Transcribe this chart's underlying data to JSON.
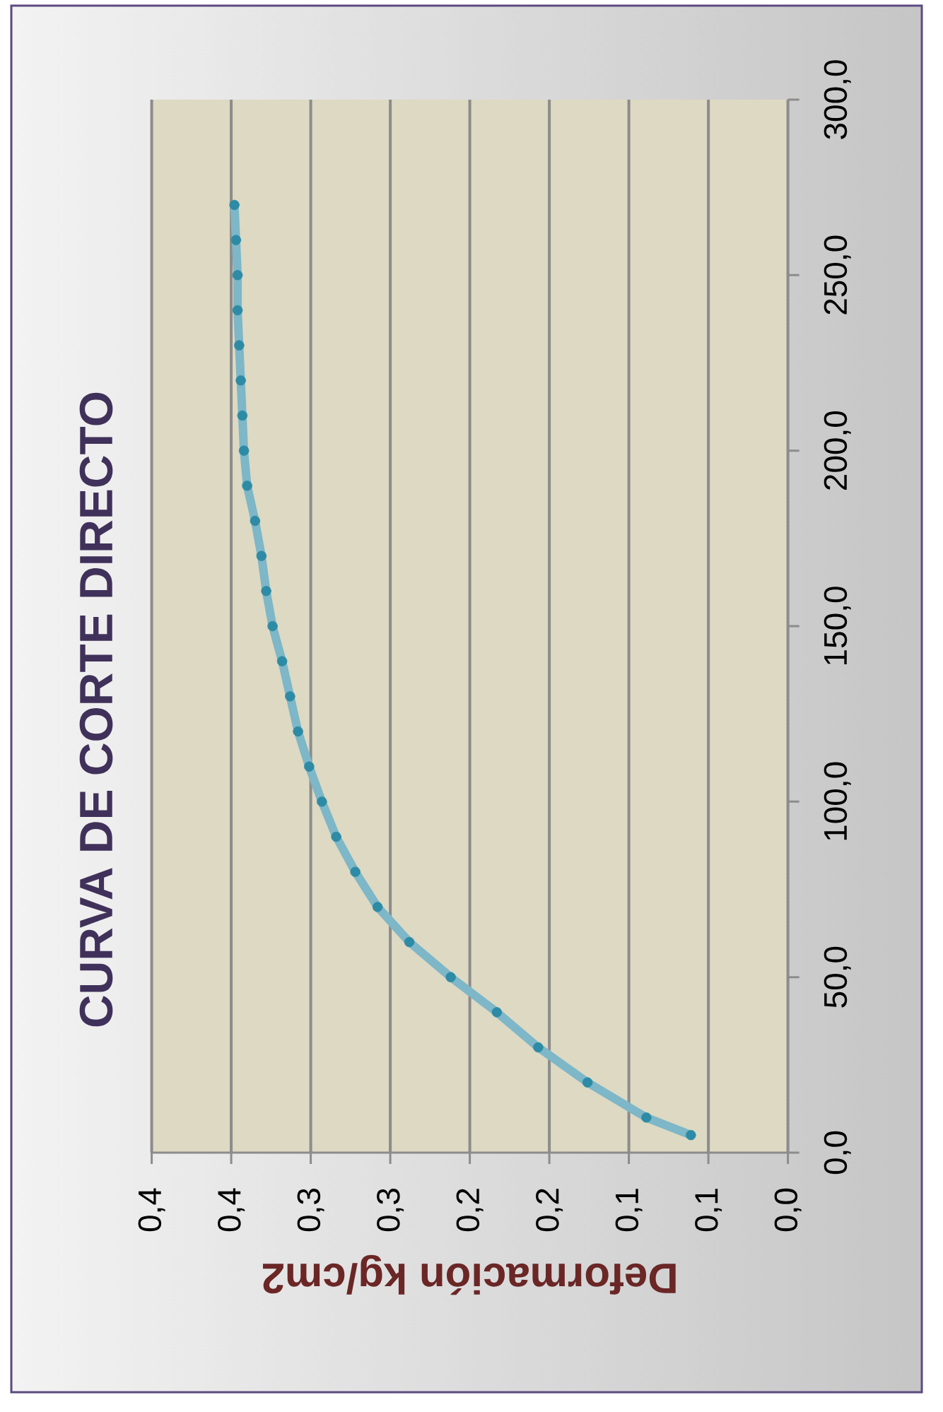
{
  "chart_data": {
    "type": "line",
    "title": "CURVA DE CORTE DIRECTO",
    "xlabel": "Deformación kg/cm2",
    "x": [
      0.061,
      0.089,
      0.126,
      0.157,
      0.183,
      0.212,
      0.238,
      0.258,
      0.272,
      0.284,
      0.293,
      0.301,
      0.308,
      0.313,
      0.318,
      0.324,
      0.328,
      0.331,
      0.335,
      0.34,
      0.342,
      0.343,
      0.344,
      0.345,
      0.346,
      0.346,
      0.347,
      0.348
    ],
    "series": [
      {
        "color": "#2e8ba6",
        "values": [
          5,
          10,
          20,
          30,
          40,
          50,
          60,
          70,
          80,
          90,
          100,
          110,
          120,
          130,
          140,
          150,
          160,
          170,
          180,
          190,
          200,
          210,
          220,
          230,
          240,
          250,
          260,
          270
        ]
      }
    ],
    "xlim": [
      0.4,
      0
    ],
    "ylim": [
      0,
      300
    ],
    "xticks": [
      {
        "value": 0.4,
        "label": "0,4"
      },
      {
        "value": 0.35,
        "label": "0,4"
      },
      {
        "value": 0.3,
        "label": "0,3"
      },
      {
        "value": 0.25,
        "label": "0,3"
      },
      {
        "value": 0.2,
        "label": "0,2"
      },
      {
        "value": 0.15,
        "label": "0,2"
      },
      {
        "value": 0.1,
        "label": "0,1"
      },
      {
        "value": 0.05,
        "label": "0,1"
      },
      {
        "value": 0,
        "label": "0,0"
      }
    ],
    "yticks": [
      {
        "value": 0,
        "label": "0,0"
      },
      {
        "value": 50,
        "label": "50,0"
      },
      {
        "value": 100,
        "label": "100,0"
      },
      {
        "value": 150,
        "label": "150,0"
      },
      {
        "value": 200,
        "label": "200,0"
      },
      {
        "value": 250,
        "label": "250,0"
      },
      {
        "value": 300,
        "label": "300,0"
      }
    ],
    "grid": "x",
    "marker": "circle"
  }
}
